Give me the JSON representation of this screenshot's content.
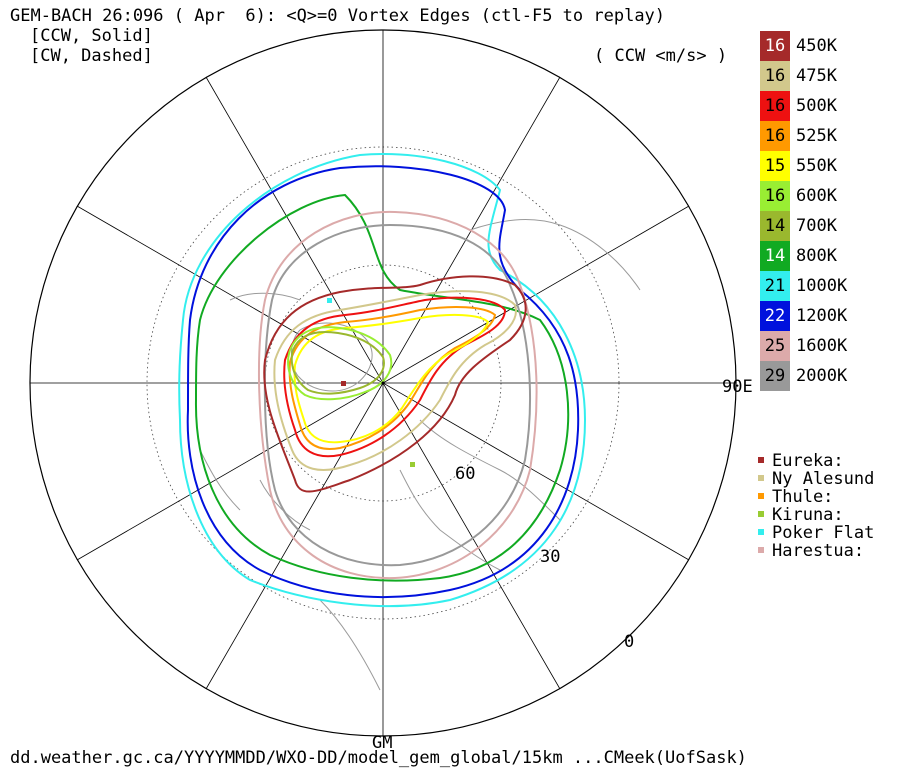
{
  "header": {
    "title": "GEM-BACH 26:096 ( Apr  6): <Q>=0 Vortex Edges (ctl-F5 to replay)",
    "ccw_note": "[CCW, Solid]",
    "cw_note": "[CW, Dashed]",
    "units": "( CCW <m/s> )"
  },
  "footer": {
    "source": "dd.weather.gc.ca/YYYYMMDD/WXO-DD/model_gem_global/15km ...CMeek(UofSask)"
  },
  "map_labels": {
    "lon_east": "90E",
    "lon_gm": "GM",
    "lat_60": "60",
    "lat_30": "30",
    "lat_0": "0"
  },
  "levels": [
    {
      "value": "16",
      "label": "450K",
      "color": "#a52a2a",
      "text_color": "#ffffff"
    },
    {
      "value": "16",
      "label": "475K",
      "color": "#d2c88c",
      "text_color": "#000000"
    },
    {
      "value": "16",
      "label": "500K",
      "color": "#ee1111",
      "text_color": "#000000"
    },
    {
      "value": "16",
      "label": "525K",
      "color": "#ff9900",
      "text_color": "#000000"
    },
    {
      "value": "15",
      "label": "550K",
      "color": "#ffff00",
      "text_color": "#000000"
    },
    {
      "value": "16",
      "label": "600K",
      "color": "#99ee33",
      "text_color": "#000000"
    },
    {
      "value": "14",
      "label": "700K",
      "color": "#9ab82e",
      "text_color": "#000000"
    },
    {
      "value": "14",
      "label": "800K",
      "color": "#11aa22",
      "text_color": "#ffffff"
    },
    {
      "value": "21",
      "label": "1000K",
      "color": "#33eeee",
      "text_color": "#000000"
    },
    {
      "value": "22",
      "label": "1200K",
      "color": "#0011dd",
      "text_color": "#ffffff"
    },
    {
      "value": "25",
      "label": "1600K",
      "color": "#dcaaaa",
      "text_color": "#000000"
    },
    {
      "value": "29",
      "label": "2000K",
      "color": "#999999",
      "text_color": "#000000"
    }
  ],
  "sites": [
    {
      "name": "Eureka:",
      "color": "#a52a2a"
    },
    {
      "name": "Ny Alesund",
      "color": "#d2c88c"
    },
    {
      "name": "Thule:",
      "color": "#ff9900"
    },
    {
      "name": "Kiruna:",
      "color": "#99cc33"
    },
    {
      "name": "Poker Flat",
      "color": "#33eeee"
    },
    {
      "name": "Harestua:",
      "color": "#dcaaaa"
    }
  ]
}
